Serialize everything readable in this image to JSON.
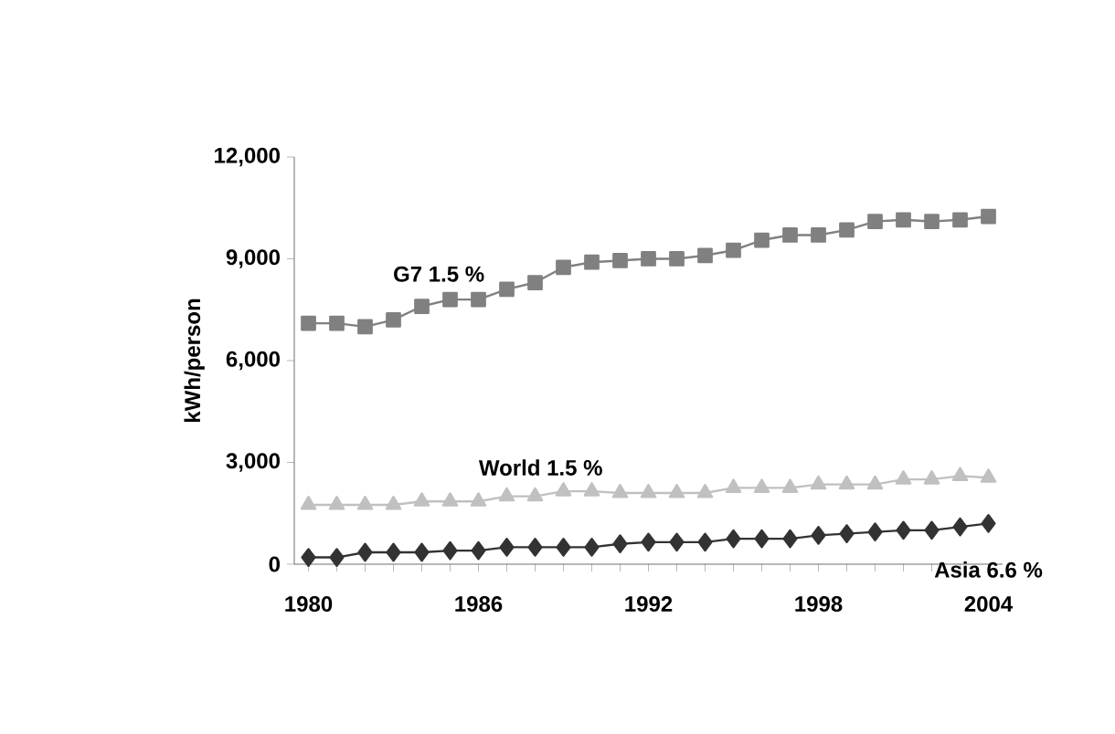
{
  "chart_data": {
    "type": "line",
    "ylabel": "kWh/person",
    "x": [
      1980,
      1981,
      1982,
      1983,
      1984,
      1985,
      1986,
      1987,
      1988,
      1989,
      1990,
      1991,
      1992,
      1993,
      1994,
      1995,
      1996,
      1997,
      1998,
      1999,
      2000,
      2001,
      2002,
      2003,
      2004
    ],
    "series": [
      {
        "name": "G7  1.5 %",
        "color": "#808080",
        "marker": "square",
        "values": [
          7100,
          7100,
          7000,
          7200,
          7600,
          7800,
          7800,
          8100,
          8300,
          8750,
          8900,
          8950,
          9000,
          9000,
          9100,
          9250,
          9550,
          9700,
          9700,
          9850,
          10100,
          10150,
          10100,
          10150,
          10250
        ]
      },
      {
        "name": "World  1.5 %",
        "color": "#c0c0c0",
        "marker": "triangle",
        "values": [
          1750,
          1750,
          1750,
          1750,
          1850,
          1850,
          1850,
          2000,
          2000,
          2150,
          2150,
          2100,
          2100,
          2100,
          2100,
          2250,
          2250,
          2250,
          2350,
          2350,
          2350,
          2500,
          2500,
          2600,
          2550
        ]
      },
      {
        "name": "Asia 6.6 %",
        "color": "#333333",
        "marker": "diamond",
        "values": [
          200,
          200,
          350,
          350,
          350,
          400,
          400,
          500,
          500,
          500,
          500,
          600,
          650,
          650,
          650,
          750,
          750,
          750,
          850,
          900,
          950,
          1000,
          1000,
          1100,
          1200
        ]
      }
    ],
    "xlim": [
      1979.5,
      2004.5
    ],
    "ylim": [
      0,
      12000
    ],
    "xticks": [
      1980,
      {
        "value": 1981,
        "label": null
      },
      {
        "value": 1982,
        "label": null
      },
      {
        "value": 1983,
        "label": null
      },
      {
        "value": 1984,
        "label": null
      },
      {
        "value": 1985,
        "label": null
      },
      1986,
      {
        "value": 1987,
        "label": null
      },
      {
        "value": 1988,
        "label": null
      },
      {
        "value": 1989,
        "label": null
      },
      {
        "value": 1990,
        "label": null
      },
      {
        "value": 1991,
        "label": null
      },
      1992,
      {
        "value": 1993,
        "label": null
      },
      {
        "value": 1994,
        "label": null
      },
      {
        "value": 1995,
        "label": null
      },
      {
        "value": 1996,
        "label": null
      },
      {
        "value": 1997,
        "label": null
      },
      1998,
      {
        "value": 1999,
        "label": null
      },
      {
        "value": 2000,
        "label": null
      },
      {
        "value": 2001,
        "label": null
      },
      {
        "value": 2002,
        "label": null
      },
      {
        "value": 2003,
        "label": null
      },
      2004
    ],
    "yticks": [
      0,
      {
        "value": 3000,
        "label": "3,000"
      },
      {
        "value": 6000,
        "label": "6,000"
      },
      {
        "value": 9000,
        "label": "9,000"
      },
      {
        "value": 12000,
        "label": "12,000"
      }
    ],
    "grid": false,
    "line_style": "solid"
  }
}
